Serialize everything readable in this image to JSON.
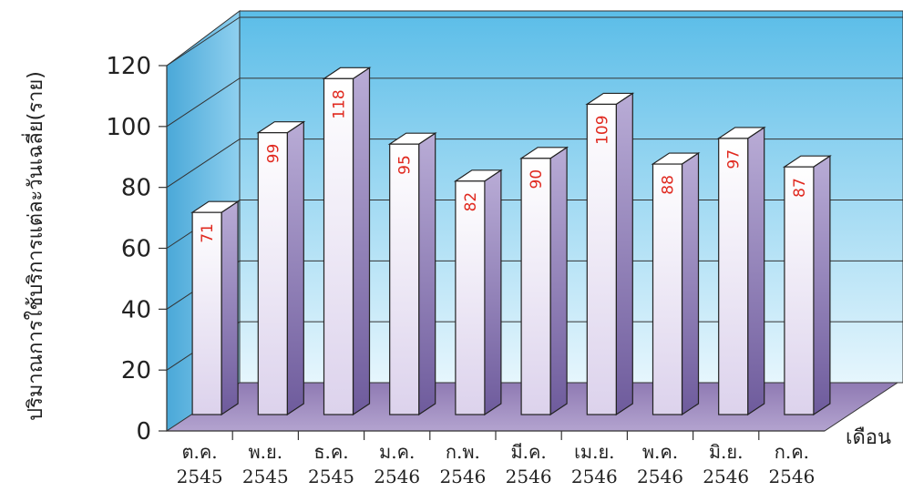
{
  "chart_data": {
    "type": "bar",
    "categories": [
      [
        "ต.ค.",
        "2545"
      ],
      [
        "พ.ย.",
        "2545"
      ],
      [
        "ธ.ค.",
        "2545"
      ],
      [
        "ม.ค.",
        "2546"
      ],
      [
        "ก.พ.",
        "2546"
      ],
      [
        "มี.ค.",
        "2546"
      ],
      [
        "เม.ย.",
        "2546"
      ],
      [
        "พ.ค.",
        "2546"
      ],
      [
        "มิ.ย.",
        "2546"
      ],
      [
        "ก.ค.",
        "2546"
      ]
    ],
    "values": [
      71,
      99,
      118,
      95,
      82,
      90,
      109,
      88,
      97,
      87
    ],
    "xlabel": "เดือน",
    "ylabel": "ปริมาณการใช้บริการแต่ละวันเฉลี่ย(ราย)",
    "ylim": [
      0,
      120
    ],
    "yticks": [
      "0",
      "20",
      "40",
      "60",
      "80",
      "100",
      "120"
    ],
    "grid": true,
    "style": "3d",
    "colors": {
      "back_wall_top": "#5bbde8",
      "back_wall_bottom": "#e6f6fd",
      "floor": "#9d88bd",
      "bar_front_top": "#ffffff",
      "bar_front_bottom": "#dcd2ec",
      "bar_side": "#7d6aa8",
      "value_label": "#e0281e"
    }
  }
}
